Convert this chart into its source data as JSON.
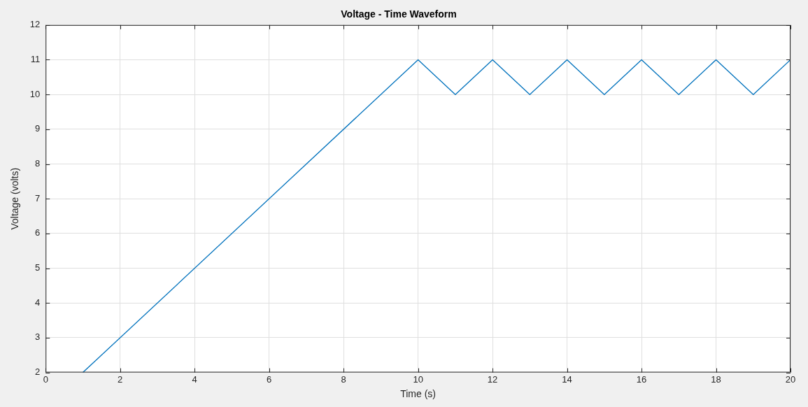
{
  "chart_data": {
    "type": "line",
    "title": "Voltage - Time Waveform",
    "xlabel": "Time (s)",
    "ylabel": "Voltage (volts)",
    "x": [
      1,
      10,
      11,
      12,
      13,
      14,
      15,
      16,
      17,
      18,
      19,
      20
    ],
    "series": [
      {
        "color": "#0072bd",
        "values": [
          2,
          11,
          10,
          11,
          10,
          11,
          10,
          11,
          10,
          11,
          10,
          11
        ]
      }
    ],
    "xlim": [
      0,
      20
    ],
    "ylim": [
      2,
      12
    ],
    "xticks": [
      0,
      2,
      4,
      6,
      8,
      10,
      12,
      14,
      16,
      18,
      20
    ],
    "yticks": [
      2,
      3,
      4,
      5,
      6,
      7,
      8,
      9,
      10,
      11,
      12
    ],
    "grid": true,
    "legend": false,
    "marker": "none",
    "line_style": "solid"
  }
}
